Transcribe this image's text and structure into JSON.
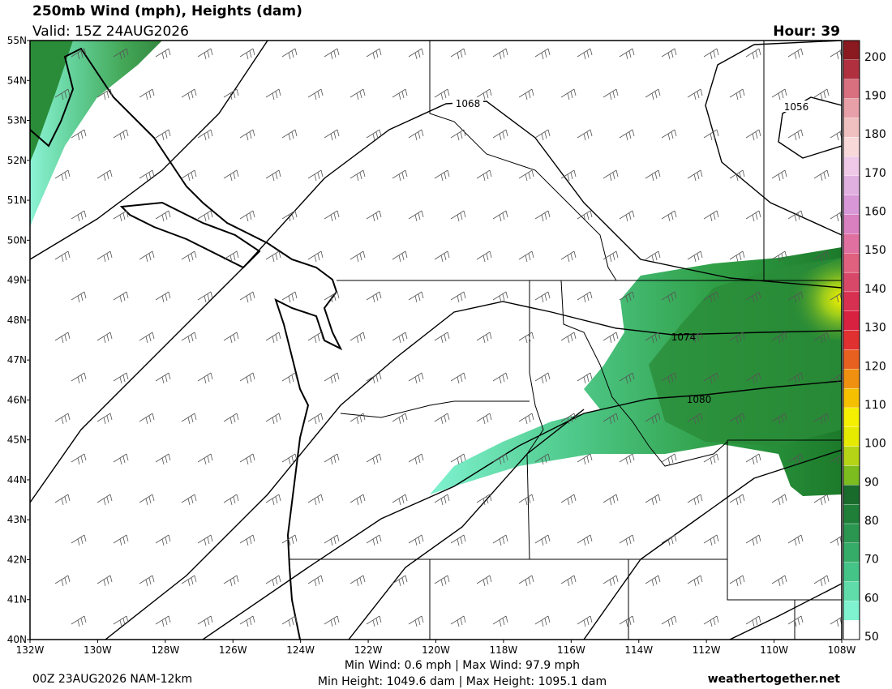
{
  "header": {
    "title": "250mb Wind (mph), Heights (dam)",
    "valid": "Valid: 15Z 24AUG2026",
    "hour": "Hour: 39"
  },
  "map": {
    "lat_labels": [
      "55N",
      "54N",
      "53N",
      "52N",
      "51N",
      "50N",
      "49N",
      "48N",
      "47N",
      "46N",
      "45N",
      "44N",
      "43N",
      "42N",
      "41N",
      "40N"
    ],
    "lon_labels": [
      "132W",
      "130W",
      "128W",
      "126W",
      "124W",
      "122W",
      "120W",
      "118W",
      "116W",
      "114W",
      "112W",
      "110W",
      "108W"
    ],
    "contour_labels": [
      "1068",
      "1056",
      "1074",
      "1080"
    ]
  },
  "colorbar": {
    "labels": [
      200,
      190,
      180,
      170,
      160,
      150,
      140,
      130,
      120,
      110,
      100,
      90,
      80,
      70,
      60,
      50
    ]
  },
  "footer": {
    "init": "00Z 23AUG2026 NAM-12km",
    "wind": "Min Wind:   0.6 mph | Max Wind:  97.9 mph",
    "height": "Min Height: 1049.6 dam | Max Height: 1095.1 dam",
    "site": "weathertogether.net"
  }
}
